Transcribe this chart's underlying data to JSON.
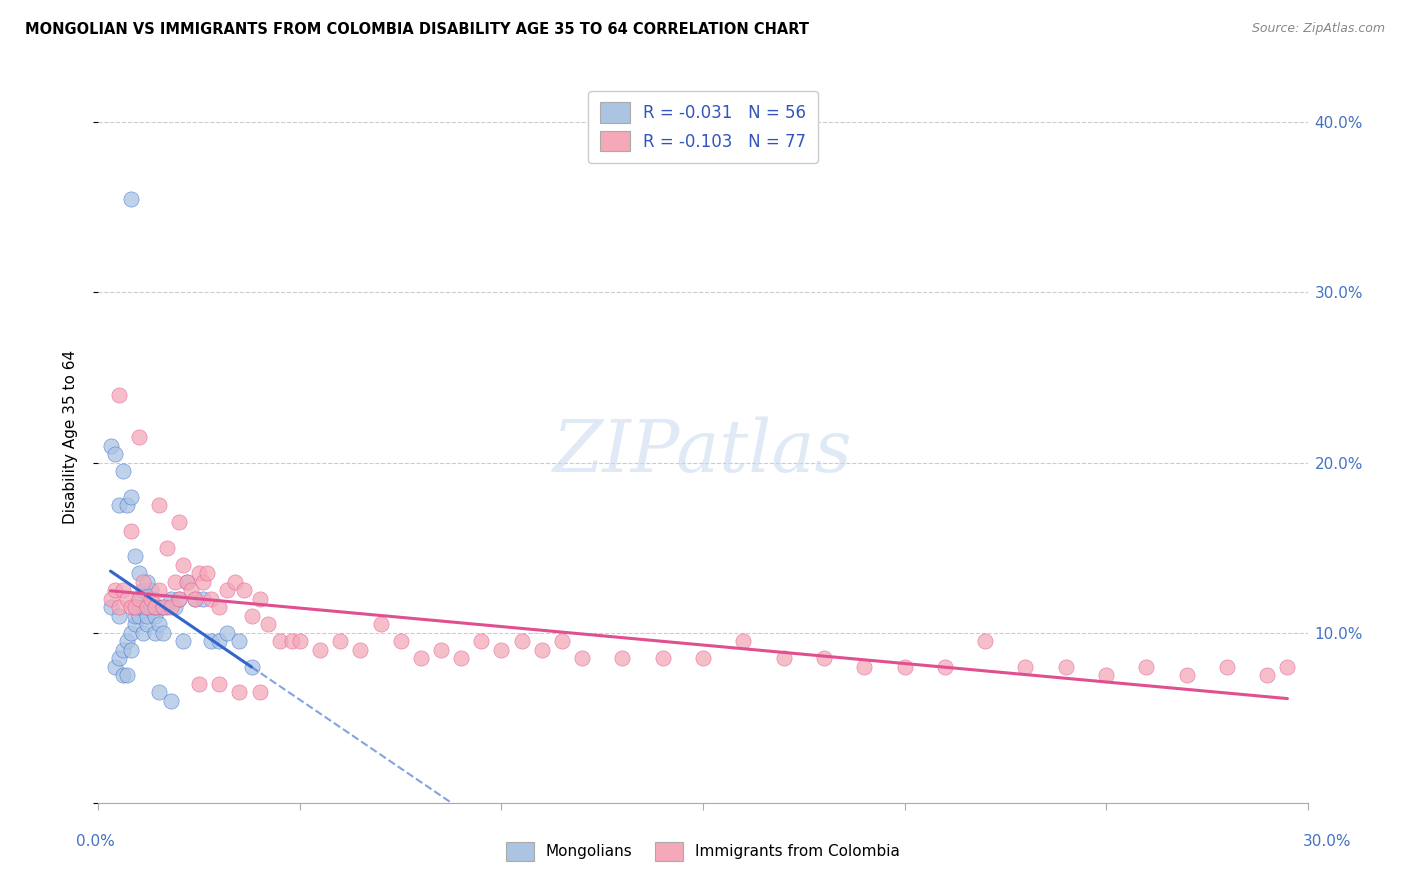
{
  "title": "MONGOLIAN VS IMMIGRANTS FROM COLOMBIA DISABILITY AGE 35 TO 64 CORRELATION CHART",
  "source": "Source: ZipAtlas.com",
  "ylabel": "Disability Age 35 to 64",
  "ytick_vals": [
    0.0,
    0.1,
    0.2,
    0.3,
    0.4
  ],
  "ytick_labels": [
    "",
    "10.0%",
    "20.0%",
    "30.0%",
    "40.0%"
  ],
  "xlim": [
    0.0,
    0.3
  ],
  "ylim": [
    0.0,
    0.43
  ],
  "legend_r1": "R = -0.031   N = 56",
  "legend_r2": "R = -0.103   N = 77",
  "mongolian_color": "#aac4e2",
  "colombia_color": "#f4a8b8",
  "trendline_mongolian_color": "#3366cc",
  "trendline_colombia_color": "#e05090",
  "watermark": "ZIPatlas",
  "mongolian_x": [
    0.003,
    0.004,
    0.005,
    0.005,
    0.006,
    0.006,
    0.007,
    0.007,
    0.008,
    0.008,
    0.008,
    0.009,
    0.009,
    0.009,
    0.01,
    0.01,
    0.01,
    0.011,
    0.011,
    0.011,
    0.012,
    0.012,
    0.012,
    0.013,
    0.013,
    0.014,
    0.014,
    0.014,
    0.015,
    0.015,
    0.016,
    0.016,
    0.017,
    0.018,
    0.019,
    0.02,
    0.021,
    0.022,
    0.024,
    0.026,
    0.028,
    0.03,
    0.032,
    0.035,
    0.038,
    0.003,
    0.004,
    0.005,
    0.006,
    0.007,
    0.008,
    0.009,
    0.01,
    0.012,
    0.015,
    0.018
  ],
  "mongolian_y": [
    0.115,
    0.08,
    0.085,
    0.11,
    0.075,
    0.09,
    0.075,
    0.095,
    0.355,
    0.09,
    0.1,
    0.105,
    0.11,
    0.115,
    0.11,
    0.115,
    0.12,
    0.1,
    0.115,
    0.125,
    0.105,
    0.11,
    0.115,
    0.115,
    0.125,
    0.1,
    0.11,
    0.115,
    0.105,
    0.115,
    0.1,
    0.115,
    0.115,
    0.12,
    0.115,
    0.12,
    0.095,
    0.13,
    0.12,
    0.12,
    0.095,
    0.095,
    0.1,
    0.095,
    0.08,
    0.21,
    0.205,
    0.175,
    0.195,
    0.175,
    0.18,
    0.145,
    0.135,
    0.13,
    0.065,
    0.06
  ],
  "colombia_x": [
    0.003,
    0.004,
    0.005,
    0.006,
    0.007,
    0.008,
    0.009,
    0.01,
    0.011,
    0.012,
    0.013,
    0.014,
    0.015,
    0.016,
    0.017,
    0.018,
    0.019,
    0.02,
    0.021,
    0.022,
    0.023,
    0.024,
    0.025,
    0.026,
    0.027,
    0.028,
    0.03,
    0.032,
    0.034,
    0.036,
    0.038,
    0.04,
    0.042,
    0.045,
    0.048,
    0.05,
    0.055,
    0.06,
    0.065,
    0.07,
    0.075,
    0.08,
    0.085,
    0.09,
    0.095,
    0.1,
    0.105,
    0.11,
    0.115,
    0.12,
    0.13,
    0.14,
    0.15,
    0.16,
    0.17,
    0.18,
    0.19,
    0.2,
    0.21,
    0.22,
    0.23,
    0.24,
    0.25,
    0.26,
    0.27,
    0.28,
    0.29,
    0.295,
    0.005,
    0.008,
    0.01,
    0.015,
    0.02,
    0.025,
    0.03,
    0.035,
    0.04
  ],
  "colombia_y": [
    0.12,
    0.125,
    0.115,
    0.125,
    0.12,
    0.115,
    0.115,
    0.12,
    0.13,
    0.115,
    0.12,
    0.115,
    0.125,
    0.115,
    0.15,
    0.115,
    0.13,
    0.12,
    0.14,
    0.13,
    0.125,
    0.12,
    0.135,
    0.13,
    0.135,
    0.12,
    0.115,
    0.125,
    0.13,
    0.125,
    0.11,
    0.12,
    0.105,
    0.095,
    0.095,
    0.095,
    0.09,
    0.095,
    0.09,
    0.105,
    0.095,
    0.085,
    0.09,
    0.085,
    0.095,
    0.09,
    0.095,
    0.09,
    0.095,
    0.085,
    0.085,
    0.085,
    0.085,
    0.095,
    0.085,
    0.085,
    0.08,
    0.08,
    0.08,
    0.095,
    0.08,
    0.08,
    0.075,
    0.08,
    0.075,
    0.08,
    0.075,
    0.08,
    0.24,
    0.16,
    0.215,
    0.175,
    0.165,
    0.07,
    0.07,
    0.065,
    0.065
  ]
}
